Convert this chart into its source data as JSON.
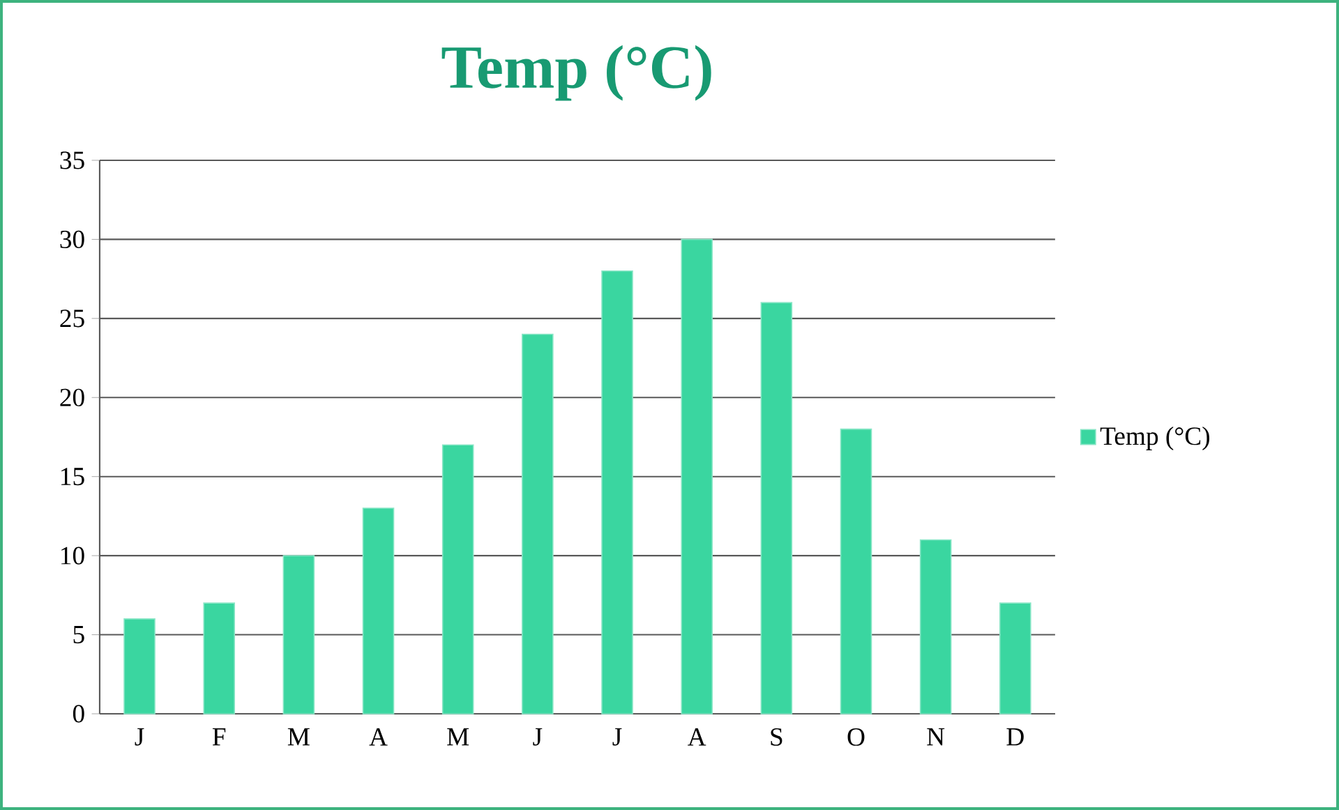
{
  "chart_data": {
    "type": "bar",
    "title": "Temp (°C)",
    "categories": [
      "J",
      "F",
      "M",
      "A",
      "M",
      "J",
      "J",
      "A",
      "S",
      "O",
      "N",
      "D"
    ],
    "series": [
      {
        "name": "Temp (°C)",
        "color": "#3ad6a0",
        "values": [
          6,
          7,
          10,
          13,
          17,
          24,
          28,
          30,
          26,
          18,
          11,
          7
        ]
      }
    ],
    "ylim": [
      0,
      35
    ],
    "yticks": [
      0,
      5,
      10,
      15,
      20,
      25,
      30,
      35
    ],
    "grid": "y",
    "legend": "right"
  }
}
